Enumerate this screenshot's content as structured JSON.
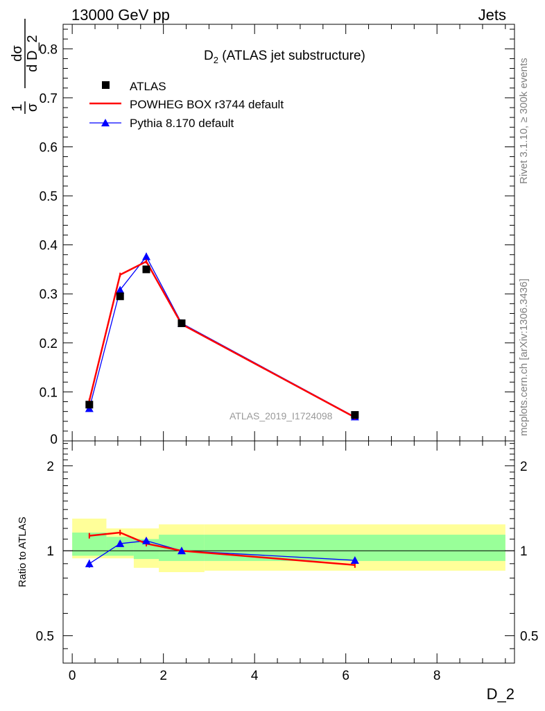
{
  "header": {
    "left": "13000 GeV pp",
    "right": "Jets"
  },
  "side": {
    "rivet": "Rivet 3.1.10, ≥ 300k events",
    "mcplots": "mcplots.cern.ch [arXiv:1306.3436]"
  },
  "chart_data": [
    {
      "type": "line",
      "title": "D",
      "title_sub": "2",
      "title_rest": " (ATLAS jet substructure)",
      "ylabel": {
        "frac1_num": "1",
        "frac1_den": "σ",
        "frac2_num": "dσ",
        "frac2_den": "d D_2",
        "d": "d"
      },
      "watermark": "ATLAS_2019_I1724098",
      "xlim": [
        -0.2,
        9.7
      ],
      "ylim": [
        0,
        0.85
      ],
      "yticks": [
        {
          "v": 0.1,
          "label": "0.1"
        },
        {
          "v": 0.2,
          "label": "0.2"
        },
        {
          "v": 0.3,
          "label": "0.3"
        },
        {
          "v": 0.4,
          "label": "0.4"
        },
        {
          "v": 0.5,
          "label": "0.5"
        },
        {
          "v": 0.6,
          "label": "0.6"
        },
        {
          "v": 0.7,
          "label": "0.7"
        },
        {
          "v": 0.8,
          "label": "0.8"
        },
        {
          "v": 0.0,
          "label": "0"
        }
      ],
      "legend": [
        {
          "name": "ATLAS",
          "marker": "square",
          "color": "#000000"
        },
        {
          "name": "POWHEG BOX r3744 default",
          "marker": "line",
          "color": "#ff0000"
        },
        {
          "name": "Pythia 8.170 default",
          "marker": "triangle",
          "color": "#0000ff"
        }
      ],
      "series": [
        {
          "name": "ATLAS",
          "x": [
            0.375,
            1.05,
            1.625,
            2.4,
            6.2
          ],
          "y": [
            0.074,
            0.295,
            0.35,
            0.24,
            0.053
          ]
        },
        {
          "name": "POWHEG BOX r3744 default",
          "x": [
            0.375,
            1.05,
            1.625,
            2.4,
            6.2
          ],
          "y": [
            0.082,
            0.339,
            0.366,
            0.238,
            0.048
          ]
        },
        {
          "name": "Pythia 8.170 default",
          "x": [
            0.375,
            1.05,
            1.625,
            2.4,
            6.2
          ],
          "y": [
            0.066,
            0.308,
            0.376,
            0.24,
            0.049
          ],
          "yerr": [
            0.003,
            0.006,
            0.008,
            0.003,
            0.002
          ]
        }
      ]
    },
    {
      "type": "line",
      "ylabel": "Ratio to ATLAS",
      "xlabel": "D_2",
      "xlim": [
        -0.2,
        9.7
      ],
      "ylim": [
        0.4,
        2.45
      ],
      "log_y": true,
      "yticks": [
        {
          "v": 0.5,
          "label": "0.5"
        },
        {
          "v": 1,
          "label": "1"
        },
        {
          "v": 2,
          "label": "2"
        }
      ],
      "xticks": [
        {
          "v": 0,
          "label": "0"
        },
        {
          "v": 2,
          "label": "2"
        },
        {
          "v": 4,
          "label": "4"
        },
        {
          "v": 6,
          "label": "6"
        },
        {
          "v": 8,
          "label": "8"
        }
      ],
      "bands": [
        {
          "x0": 0.0,
          "x1": 0.75,
          "yellow": [
            0.94,
            1.3
          ],
          "green": [
            0.96,
            1.16
          ]
        },
        {
          "x0": 0.75,
          "x1": 1.35,
          "yellow": [
            0.94,
            1.2
          ],
          "green": [
            0.96,
            1.12
          ]
        },
        {
          "x0": 1.35,
          "x1": 1.9,
          "yellow": [
            0.87,
            1.2
          ],
          "green": [
            0.935,
            1.1
          ]
        },
        {
          "x0": 1.9,
          "x1": 2.9,
          "yellow": [
            0.84,
            1.24
          ],
          "green": [
            0.92,
            1.14
          ]
        },
        {
          "x0": 2.9,
          "x1": 9.5,
          "yellow": [
            0.85,
            1.24
          ],
          "green": [
            0.92,
            1.14
          ]
        }
      ],
      "series": [
        {
          "name": "POWHEG BOX r3744 default",
          "x": [
            0.375,
            1.05,
            1.625,
            2.4,
            6.2
          ],
          "y": [
            1.13,
            1.16,
            1.06,
            1.0,
            0.89
          ]
        },
        {
          "name": "Pythia 8.170 default",
          "x": [
            0.375,
            1.05,
            1.625,
            2.4,
            6.2
          ],
          "y": [
            0.9,
            1.06,
            1.085,
            1.0,
            0.925
          ],
          "yerr": [
            0.03,
            0.0,
            0.0,
            0.0,
            0.0
          ]
        }
      ]
    }
  ]
}
